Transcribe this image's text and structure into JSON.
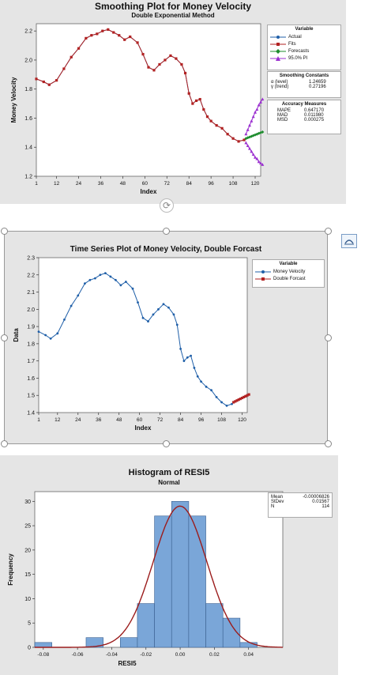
{
  "chart1": {
    "title": "Smoothing Plot for Money Velocity",
    "subtitle": "Double Exponential Method",
    "ylabel": "Money Velocity",
    "xlabel": "Index",
    "xticks": [
      "1",
      "12",
      "24",
      "36",
      "48",
      "60",
      "72",
      "84",
      "96",
      "108",
      "120"
    ],
    "yticks": [
      "1.2",
      "1.4",
      "1.6",
      "1.8",
      "2.0",
      "2.2"
    ],
    "legend_title": "Variable",
    "legend": [
      "Actual",
      "Fits",
      "Forecasts",
      "95.0% PI"
    ],
    "constants_title": "Smoothing Constants",
    "constants": [
      [
        "α (level)",
        "1.24659"
      ],
      [
        "γ (trend)",
        "0.27196"
      ]
    ],
    "accuracy_title": "Accuracy Measures",
    "accuracy": [
      [
        "MAPE",
        "0.647170"
      ],
      [
        "MAD",
        "0.011980"
      ],
      [
        "MSD",
        "0.000275"
      ]
    ],
    "colors": {
      "actual": "#1f5fa8",
      "fits": "#b22222",
      "forecast": "#1e8c2e",
      "pi": "#9b30d0"
    }
  },
  "chart2": {
    "title": "Time Series Plot of Money Velocity, Double Forcast",
    "ylabel": "Data",
    "xlabel": "Index",
    "xticks": [
      "1",
      "12",
      "24",
      "36",
      "48",
      "60",
      "72",
      "84",
      "96",
      "108",
      "120"
    ],
    "yticks": [
      "1.4",
      "1.5",
      "1.6",
      "1.7",
      "1.8",
      "1.9",
      "2.0",
      "2.1",
      "2.2",
      "2.3"
    ],
    "legend_title": "Variable",
    "legend": [
      "Money Velocity",
      "Double Forcast"
    ]
  },
  "chart3": {
    "title": "Histogram of RESI5",
    "subtitle": "Normal",
    "ylabel": "Frequency",
    "xlabel": "RESI5",
    "xticks": [
      "-0.08",
      "-0.06",
      "-0.04",
      "-0.02",
      "0.00",
      "0.02",
      "0.04"
    ],
    "yticks": [
      "0",
      "5",
      "10",
      "15",
      "20",
      "25",
      "30"
    ],
    "stats": [
      [
        "Mean",
        "-0.00006826"
      ],
      [
        "StDev",
        "0.01567"
      ],
      [
        "N",
        "114"
      ]
    ]
  },
  "chart_data": [
    {
      "type": "line",
      "title": "Smoothing Plot for Money Velocity",
      "xlabel": "Index",
      "ylabel": "Money Velocity",
      "xlim": [
        1,
        123
      ],
      "ylim": [
        1.2,
        2.25
      ],
      "series": [
        {
          "name": "Actual",
          "x": [
            1,
            5,
            8,
            12,
            16,
            20,
            24,
            28,
            31,
            34,
            37,
            40,
            43,
            46,
            49,
            52,
            56,
            59,
            62,
            65,
            68,
            71,
            74,
            77,
            80,
            82,
            84,
            86,
            88,
            90,
            92,
            94,
            96,
            99,
            102,
            105,
            108,
            111,
            114
          ],
          "values": [
            1.87,
            1.85,
            1.83,
            1.86,
            1.94,
            2.02,
            2.08,
            2.15,
            2.17,
            2.18,
            2.2,
            2.21,
            2.19,
            2.17,
            2.14,
            2.16,
            2.12,
            2.04,
            1.95,
            1.93,
            1.97,
            2.0,
            2.03,
            2.01,
            1.97,
            1.91,
            1.77,
            1.7,
            1.72,
            1.73,
            1.66,
            1.61,
            1.58,
            1.55,
            1.53,
            1.49,
            1.46,
            1.44,
            1.45
          ]
        },
        {
          "name": "Fits",
          "x": [
            1,
            5,
            8,
            12,
            16,
            20,
            24,
            28,
            31,
            34,
            37,
            40,
            43,
            46,
            49,
            52,
            56,
            59,
            62,
            65,
            68,
            71,
            74,
            77,
            80,
            82,
            84,
            86,
            88,
            90,
            92,
            94,
            96,
            99,
            102,
            105,
            108,
            111,
            114
          ],
          "values": [
            1.87,
            1.85,
            1.83,
            1.86,
            1.94,
            2.02,
            2.08,
            2.15,
            2.17,
            2.18,
            2.2,
            2.21,
            2.19,
            2.17,
            2.14,
            2.16,
            2.12,
            2.04,
            1.95,
            1.93,
            1.97,
            2.0,
            2.03,
            2.01,
            1.97,
            1.91,
            1.77,
            1.7,
            1.72,
            1.73,
            1.66,
            1.61,
            1.58,
            1.55,
            1.53,
            1.49,
            1.46,
            1.44,
            1.45
          ]
        },
        {
          "name": "Forecasts",
          "x": [
            115,
            116,
            117,
            118,
            119,
            120,
            121,
            122,
            123,
            124
          ],
          "values": [
            1.46,
            1.465,
            1.47,
            1.475,
            1.48,
            1.485,
            1.49,
            1.495,
            1.5,
            1.505
          ]
        },
        {
          "name": "95.0% PI upper",
          "x": [
            115,
            116,
            117,
            118,
            119,
            120,
            121,
            122,
            123,
            124
          ],
          "values": [
            1.49,
            1.52,
            1.55,
            1.58,
            1.61,
            1.64,
            1.66,
            1.69,
            1.71,
            1.73
          ]
        },
        {
          "name": "95.0% PI lower",
          "x": [
            115,
            116,
            117,
            118,
            119,
            120,
            121,
            122,
            123,
            124
          ],
          "values": [
            1.43,
            1.41,
            1.39,
            1.37,
            1.35,
            1.33,
            1.32,
            1.3,
            1.29,
            1.28
          ]
        }
      ]
    },
    {
      "type": "line",
      "title": "Time Series Plot of Money Velocity, Double Forcast",
      "xlabel": "Index",
      "ylabel": "Data",
      "xlim": [
        1,
        123
      ],
      "ylim": [
        1.4,
        2.3
      ],
      "series": [
        {
          "name": "Money Velocity",
          "x": [
            1,
            5,
            8,
            12,
            16,
            20,
            24,
            28,
            31,
            34,
            37,
            40,
            43,
            46,
            49,
            52,
            56,
            59,
            62,
            65,
            68,
            71,
            74,
            77,
            80,
            82,
            84,
            86,
            88,
            90,
            92,
            94,
            96,
            99,
            102,
            105,
            108,
            111,
            114
          ],
          "values": [
            1.87,
            1.85,
            1.83,
            1.86,
            1.94,
            2.02,
            2.08,
            2.15,
            2.17,
            2.18,
            2.2,
            2.21,
            2.19,
            2.17,
            2.14,
            2.16,
            2.12,
            2.04,
            1.95,
            1.93,
            1.97,
            2.0,
            2.03,
            2.01,
            1.97,
            1.91,
            1.77,
            1.7,
            1.72,
            1.73,
            1.66,
            1.61,
            1.58,
            1.55,
            1.53,
            1.49,
            1.46,
            1.44,
            1.45
          ]
        },
        {
          "name": "Double Forcast",
          "x": [
            115,
            116,
            117,
            118,
            119,
            120,
            121,
            122,
            123,
            124
          ],
          "values": [
            1.46,
            1.465,
            1.47,
            1.475,
            1.48,
            1.485,
            1.49,
            1.495,
            1.5,
            1.505
          ]
        }
      ]
    },
    {
      "type": "bar",
      "title": "Histogram of RESI5",
      "xlabel": "RESI5",
      "ylabel": "Frequency",
      "xlim": [
        -0.085,
        0.06
      ],
      "ylim": [
        0,
        32
      ],
      "bin_width": 0.01,
      "bin_centers": [
        -0.08,
        -0.07,
        -0.06,
        -0.05,
        -0.04,
        -0.03,
        -0.02,
        -0.01,
        0.0,
        0.01,
        0.02,
        0.03,
        0.04
      ],
      "values": [
        1,
        0,
        0,
        2,
        0,
        2,
        9,
        27,
        30,
        27,
        9,
        6,
        1
      ],
      "normal_fit": {
        "mean": -6.826e-05,
        "stdev": 0.01567,
        "n": 114
      }
    }
  ]
}
